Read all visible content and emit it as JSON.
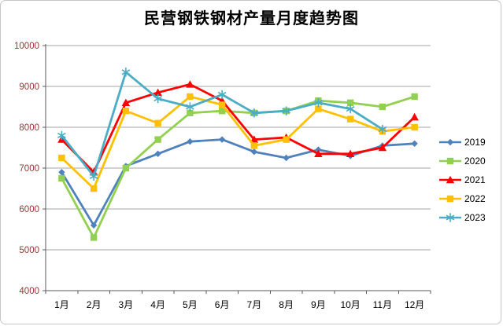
{
  "window": {
    "background": "#ffffff",
    "frame_border_color": "#c6c6c6"
  },
  "chart_data": {
    "type": "line",
    "title": "民营钢铁钢材产量月度趋势图",
    "xlabel": "",
    "ylabel": "",
    "categories": [
      "1月",
      "2月",
      "3月",
      "4月",
      "5月",
      "6月",
      "7月",
      "8月",
      "9月",
      "10月",
      "11月",
      "12月"
    ],
    "series": [
      {
        "name": "2019",
        "color": "#4F81BD",
        "marker": "diamond",
        "values": [
          6900,
          5600,
          7050,
          7350,
          7650,
          7700,
          7400,
          7250,
          7450,
          7300,
          7550,
          7600
        ]
      },
      {
        "name": "2020",
        "color": "#92D050",
        "marker": "square",
        "values": [
          6750,
          5300,
          7000,
          7700,
          8350,
          8400,
          8350,
          8400,
          8650,
          8600,
          8500,
          8750
        ]
      },
      {
        "name": "2021",
        "color": "#FF0000",
        "marker": "triangle",
        "values": [
          7700,
          6900,
          8600,
          8850,
          9050,
          8650,
          7700,
          7750,
          7350,
          7350,
          7500,
          8250
        ]
      },
      {
        "name": "2022",
        "color": "#FFC000",
        "marker": "square",
        "values": [
          7250,
          6500,
          8400,
          8100,
          8750,
          8550,
          7550,
          7700,
          8450,
          8200,
          7900,
          8000
        ]
      },
      {
        "name": "2023",
        "color": "#4BACC6",
        "marker": "asterisk",
        "values": [
          7800,
          6800,
          9350,
          8700,
          8500,
          8800,
          8350,
          8400,
          8600,
          8450,
          7950,
          null
        ]
      }
    ],
    "ylim": [
      4000,
      10000
    ],
    "yticks": [
      4000,
      5000,
      6000,
      7000,
      8000,
      9000,
      10000
    ],
    "grid": "horizontal",
    "legend_position": "right",
    "gridline_color": "#A6A6A6",
    "axis_line_color": "#595959",
    "y_tick_label_color": "#963634",
    "x_tick_label_color": "#000000"
  }
}
